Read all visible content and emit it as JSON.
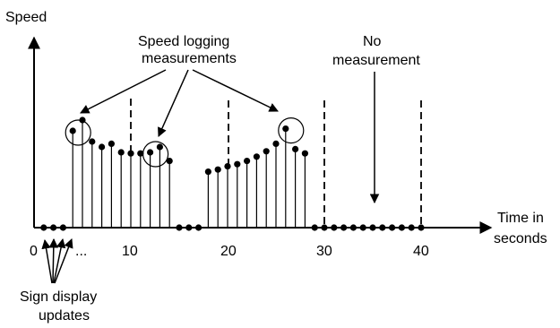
{
  "diagram": {
    "y_axis_label": "Speed",
    "x_axis_label_line1": "Time in",
    "x_axis_label_line2": "seconds",
    "x_ticks": [
      "0",
      "10",
      "20",
      "30",
      "40"
    ],
    "ellipsis": "...",
    "annotation_logging_line1": "Speed logging",
    "annotation_logging_line2": "measurements",
    "annotation_none_line1": "No",
    "annotation_none_line2": "measurement",
    "annotation_sign_line1": "Sign display",
    "annotation_sign_line2": "updates"
  },
  "chart_data": {
    "type": "scatter",
    "xlabel": "Time in seconds",
    "ylabel": "Speed",
    "xticks": [
      0,
      10,
      20,
      30,
      40
    ],
    "x": [
      1,
      2,
      3,
      4,
      5,
      6,
      7,
      8,
      9,
      10,
      11,
      12,
      13,
      14,
      15,
      16,
      17,
      18,
      19,
      20,
      21,
      22,
      23,
      24,
      25,
      26,
      27,
      28,
      29,
      30,
      31,
      32,
      33,
      34,
      35,
      36,
      37,
      38,
      39,
      40
    ],
    "y": [
      0,
      0,
      0,
      9,
      10,
      8,
      7.5,
      7.8,
      7,
      6.9,
      6.9,
      7,
      7.5,
      6.2,
      0,
      0,
      0,
      5.2,
      5.4,
      5.7,
      5.9,
      6.2,
      6.6,
      7.1,
      7.8,
      9.2,
      7.3,
      6.9,
      0,
      0,
      0,
      0,
      0,
      0,
      0,
      0,
      0,
      0,
      0,
      0
    ],
    "circled_x": [
      4,
      12,
      26
    ],
    "dashed_gridlines_x": [
      10,
      20,
      30,
      40
    ]
  }
}
